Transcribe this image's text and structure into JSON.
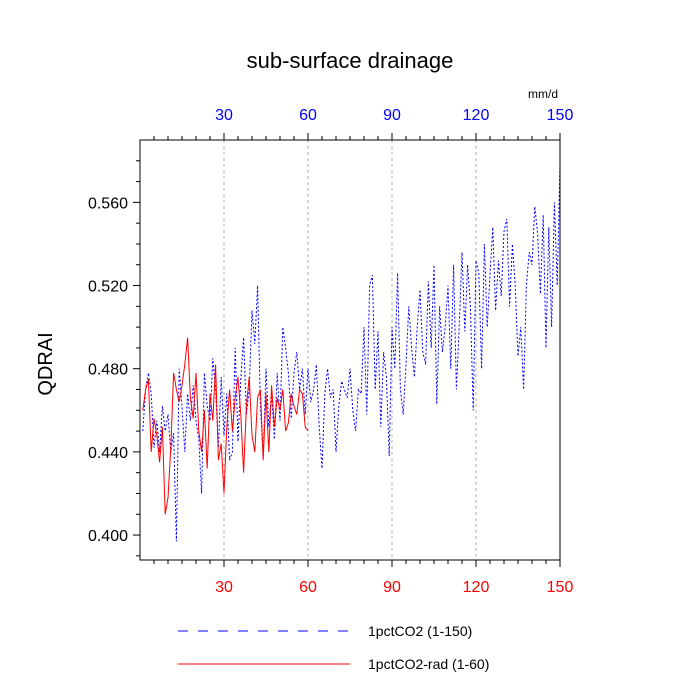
{
  "chart_data": {
    "type": "line",
    "title": "sub-surface drainage",
    "ylabel": "QDRAI",
    "units": "mm/d",
    "xlim": [
      0,
      150
    ],
    "ylim": [
      0.388,
      0.59
    ],
    "x_ticks": [
      "30",
      "60",
      "90",
      "120",
      "150"
    ],
    "y_ticks": [
      "0.400",
      "0.440",
      "0.480",
      "0.520",
      "0.560"
    ],
    "grid": "vertical dashed at x ticks",
    "legend_position": "bottom",
    "series": [
      {
        "name": "1pctCO2 (1-150)",
        "color": "#0000ff",
        "style": "dashed",
        "x": [
          1,
          2,
          3,
          4,
          5,
          6,
          7,
          8,
          9,
          10,
          11,
          12,
          13,
          14,
          15,
          16,
          17,
          18,
          19,
          20,
          21,
          22,
          23,
          24,
          25,
          26,
          27,
          28,
          29,
          30,
          31,
          32,
          33,
          34,
          35,
          36,
          37,
          38,
          39,
          40,
          41,
          42,
          43,
          44,
          45,
          46,
          47,
          48,
          49,
          50,
          51,
          52,
          53,
          54,
          55,
          56,
          57,
          58,
          59,
          60,
          61,
          62,
          63,
          64,
          65,
          66,
          67,
          68,
          69,
          70,
          71,
          72,
          73,
          74,
          75,
          76,
          77,
          78,
          79,
          80,
          81,
          82,
          83,
          84,
          85,
          86,
          87,
          88,
          89,
          90,
          91,
          92,
          93,
          94,
          95,
          96,
          97,
          98,
          99,
          100,
          101,
          102,
          103,
          104,
          105,
          106,
          107,
          108,
          109,
          110,
          111,
          112,
          113,
          114,
          115,
          116,
          117,
          118,
          119,
          120,
          121,
          122,
          123,
          124,
          125,
          126,
          127,
          128,
          129,
          130,
          131,
          132,
          133,
          134,
          135,
          136,
          137,
          138,
          139,
          140,
          141,
          142,
          143,
          144,
          145,
          146,
          147,
          148,
          149,
          150
        ],
        "y": [
          0.45,
          0.47,
          0.478,
          0.468,
          0.442,
          0.455,
          0.44,
          0.462,
          0.45,
          0.458,
          0.44,
          0.449,
          0.397,
          0.48,
          0.462,
          0.44,
          0.468,
          0.455,
          0.472,
          0.455,
          0.446,
          0.42,
          0.478,
          0.462,
          0.455,
          0.485,
          0.47,
          0.442,
          0.476,
          0.448,
          0.468,
          0.436,
          0.44,
          0.49,
          0.445,
          0.475,
          0.495,
          0.458,
          0.47,
          0.508,
          0.492,
          0.52,
          0.462,
          0.438,
          0.48,
          0.452,
          0.468,
          0.446,
          0.478,
          0.455,
          0.5,
          0.49,
          0.478,
          0.456,
          0.478,
          0.488,
          0.47,
          0.48,
          0.458,
          0.48,
          0.464,
          0.47,
          0.482,
          0.452,
          0.432,
          0.468,
          0.48,
          0.466,
          0.47,
          0.44,
          0.462,
          0.474,
          0.47,
          0.466,
          0.48,
          0.46,
          0.45,
          0.47,
          0.468,
          0.5,
          0.458,
          0.52,
          0.525,
          0.47,
          0.498,
          0.452,
          0.488,
          0.476,
          0.438,
          0.5,
          0.48,
          0.526,
          0.47,
          0.458,
          0.482,
          0.51,
          0.49,
          0.476,
          0.5,
          0.518,
          0.488,
          0.482,
          0.522,
          0.49,
          0.53,
          0.463,
          0.51,
          0.488,
          0.5,
          0.52,
          0.48,
          0.53,
          0.47,
          0.5,
          0.536,
          0.498,
          0.53,
          0.51,
          0.46,
          0.532,
          0.526,
          0.48,
          0.54,
          0.5,
          0.525,
          0.548,
          0.508,
          0.532,
          0.515,
          0.546,
          0.552,
          0.51,
          0.54,
          0.52,
          0.486,
          0.5,
          0.47,
          0.52,
          0.536,
          0.53,
          0.558,
          0.545,
          0.516,
          0.554,
          0.49,
          0.548,
          0.5,
          0.56,
          0.52,
          0.578
        ]
      },
      {
        "name": "1pctCO2-rad (1-60)",
        "color": "#ff0000",
        "style": "solid",
        "x": [
          1,
          2,
          3,
          4,
          5,
          6,
          7,
          8,
          9,
          10,
          11,
          12,
          13,
          14,
          15,
          16,
          17,
          18,
          19,
          20,
          21,
          22,
          23,
          24,
          25,
          26,
          27,
          28,
          29,
          30,
          31,
          32,
          33,
          34,
          35,
          36,
          37,
          38,
          39,
          40,
          41,
          42,
          43,
          44,
          45,
          46,
          47,
          48,
          49,
          50,
          51,
          52,
          53,
          54,
          55,
          56,
          57,
          58,
          59,
          60
        ],
        "y": [
          0.46,
          0.47,
          0.475,
          0.44,
          0.456,
          0.448,
          0.435,
          0.452,
          0.41,
          0.418,
          0.442,
          0.478,
          0.47,
          0.464,
          0.472,
          0.482,
          0.495,
          0.466,
          0.456,
          0.478,
          0.45,
          0.44,
          0.46,
          0.432,
          0.468,
          0.455,
          0.482,
          0.436,
          0.444,
          0.42,
          0.452,
          0.47,
          0.45,
          0.466,
          0.476,
          0.458,
          0.43,
          0.462,
          0.476,
          0.448,
          0.44,
          0.466,
          0.47,
          0.436,
          0.468,
          0.44,
          0.472,
          0.452,
          0.466,
          0.46,
          0.47,
          0.45,
          0.454,
          0.468,
          0.462,
          0.458,
          0.47,
          0.468,
          0.452,
          0.45
        ]
      }
    ]
  }
}
